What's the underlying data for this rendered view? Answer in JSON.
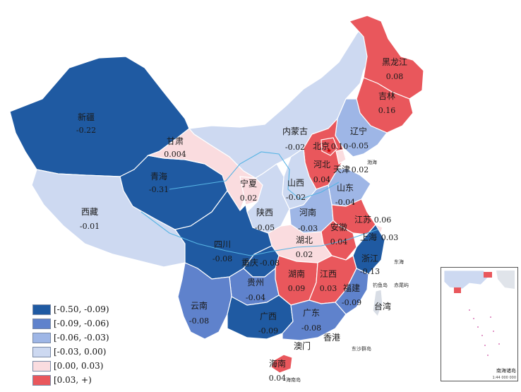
{
  "colors": {
    "c1": "#1f5aa2",
    "c2": "#5f82cc",
    "c3": "#9eb6e6",
    "c4": "#cdd9f1",
    "c5": "#fadcdf",
    "c6": "#e9575c",
    "water": "#57b4e4",
    "border": "#9aa4b2"
  },
  "legend": [
    {
      "label": "[-0.50, -0.09)",
      "color_key": "c1"
    },
    {
      "label": "[-0.09, -0.06)",
      "color_key": "c2"
    },
    {
      "label": "[-0.06, -0.03)",
      "color_key": "c3"
    },
    {
      "label": "[-0.03, 0.00)",
      "color_key": "c4"
    },
    {
      "label": "[0.00, 0.03)",
      "color_key": "c5"
    },
    {
      "label": "[0.03, +)",
      "color_key": "c6"
    }
  ],
  "provinces": {
    "xinjiang": {
      "name": "新疆",
      "value": "-0.22"
    },
    "xizang": {
      "name": "西藏",
      "value": "-0.01"
    },
    "qinghai": {
      "name": "青海",
      "value": "-0.31"
    },
    "gansu": {
      "name": "甘肃",
      "value": "0.004"
    },
    "neimenggu": {
      "name": "内蒙古",
      "value": "-0.02"
    },
    "heilongjiang": {
      "name": "黑龙江",
      "value": "0.08"
    },
    "jilin": {
      "name": "吉林",
      "value": "0.16"
    },
    "liaoning": {
      "name": "辽宁",
      "value": "-0.05"
    },
    "beijing": {
      "name": "北京",
      "value": "0.10"
    },
    "tianjin": {
      "name": "天津",
      "value": "0.02"
    },
    "hebei": {
      "name": "河北",
      "value": "0.04"
    },
    "shanxi": {
      "name": "山西",
      "value": "-0.02"
    },
    "ningxia": {
      "name": "宁夏",
      "value": "0.02"
    },
    "shaanxi": {
      "name": "陕西",
      "value": "-0.05"
    },
    "shandong": {
      "name": "山东",
      "value": "-0.04"
    },
    "henan": {
      "name": "河南",
      "value": "-0.03"
    },
    "jiangsu": {
      "name": "江苏",
      "value": "0.06"
    },
    "shanghai": {
      "name": "上海",
      "value": "0.03"
    },
    "anhui": {
      "name": "安徽",
      "value": "0.04"
    },
    "hubei": {
      "name": "湖北",
      "value": "0.02"
    },
    "sichuan": {
      "name": "四川",
      "value": "-0.08"
    },
    "chongqing": {
      "name": "重庆",
      "value": "-0.08"
    },
    "zhejiang": {
      "name": "浙江",
      "value": "-0.13"
    },
    "hunan": {
      "name": "湖南",
      "value": "0.09"
    },
    "jiangxi": {
      "name": "江西",
      "value": "0.03"
    },
    "fujian": {
      "name": "福建",
      "value": "-0.09"
    },
    "guizhou": {
      "name": "贵州",
      "value": "-0.04"
    },
    "yunnan": {
      "name": "云南",
      "value": "-0.08"
    },
    "guangxi": {
      "name": "广西",
      "value": "-0.09"
    },
    "guangdong": {
      "name": "广东",
      "value": "-0.08"
    },
    "hainan": {
      "name": "海南",
      "value": "0.04"
    }
  },
  "other_labels": {
    "taiwan": "台湾",
    "hongkong": "香港",
    "macau": "澳门",
    "diaoyu": "钓鱼岛",
    "chiwei": "赤尾屿",
    "dongsha": "东沙群岛",
    "hainan_island": "海南岛",
    "bohai": "渤海",
    "donghai": "东海"
  },
  "inset": {
    "title": "南海诸岛",
    "scale": "1:44 000 000"
  }
}
